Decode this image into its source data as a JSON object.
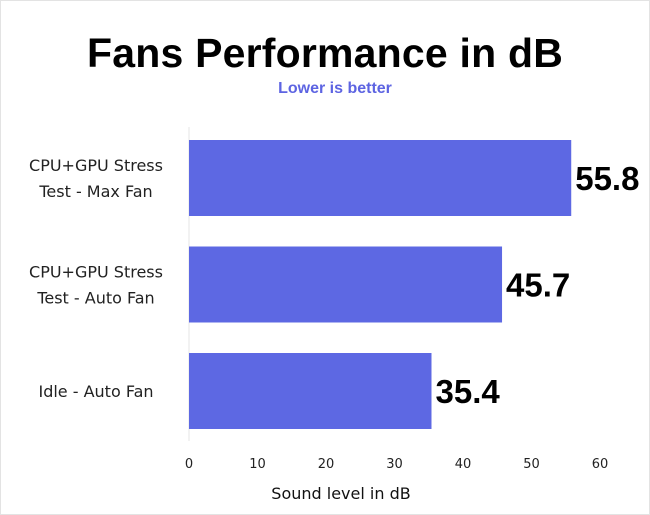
{
  "chart_data": {
    "type": "bar",
    "orientation": "horizontal",
    "title": "Fans Performance in dB",
    "subtitle": "Lower is better",
    "xlabel": "Sound level in dB",
    "ylabel": "",
    "categories": [
      [
        "CPU+GPU Stress",
        "Test - Max Fan"
      ],
      [
        "CPU+GPU Stress",
        "Test - Auto Fan"
      ],
      [
        "Idle - Auto Fan"
      ]
    ],
    "values": [
      55.8,
      45.7,
      35.4
    ],
    "data_labels": [
      "55.8",
      "45.7",
      "35.4"
    ],
    "xlim": [
      0,
      60
    ],
    "xticks": [
      0,
      10,
      20,
      30,
      40,
      50,
      60
    ],
    "xtick_labels": [
      "0",
      "10",
      "20",
      "30",
      "40",
      "50",
      "60"
    ],
    "grid": false,
    "legend": "none",
    "colors": {
      "bar": "#5d68e3",
      "subtitle": "#5d64e2"
    }
  }
}
